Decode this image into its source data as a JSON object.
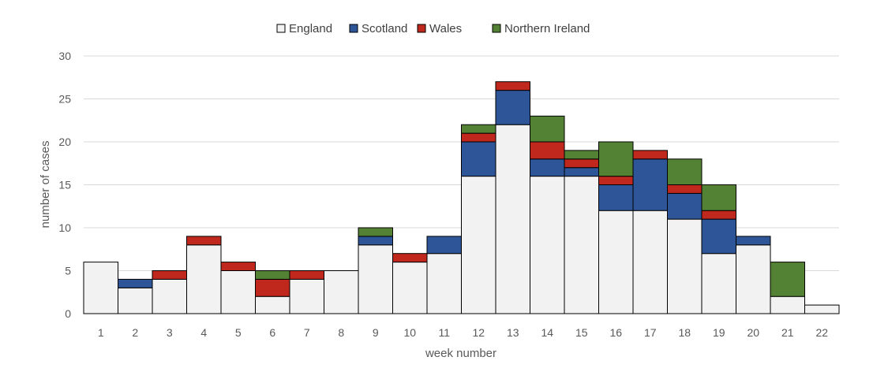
{
  "chart_data": {
    "type": "bar",
    "stacked": true,
    "title": "",
    "xlabel": "week number",
    "ylabel": "number of cases",
    "ylim": [
      0,
      30
    ],
    "yticks": [
      0,
      5,
      10,
      15,
      20,
      25,
      30
    ],
    "grid": true,
    "legend_position": "top",
    "categories": [
      "1",
      "2",
      "3",
      "4",
      "5",
      "6",
      "7",
      "8",
      "9",
      "10",
      "11",
      "12",
      "13",
      "14",
      "15",
      "16",
      "17",
      "18",
      "19",
      "20",
      "21",
      "22"
    ],
    "series": [
      {
        "name": "England",
        "color": "#f2f2f2",
        "values": [
          6,
          3,
          4,
          8,
          5,
          2,
          4,
          5,
          8,
          6,
          7,
          16,
          22,
          16,
          16,
          12,
          12,
          11,
          7,
          8,
          2,
          1
        ]
      },
      {
        "name": "Scotland",
        "color": "#2e5597",
        "values": [
          0,
          1,
          0,
          0,
          0,
          0,
          0,
          0,
          1,
          0,
          2,
          4,
          4,
          2,
          1,
          3,
          6,
          3,
          4,
          1,
          0,
          0
        ]
      },
      {
        "name": "Wales",
        "color": "#c0281e",
        "values": [
          0,
          0,
          1,
          1,
          1,
          2,
          1,
          0,
          0,
          1,
          0,
          1,
          1,
          2,
          1,
          1,
          1,
          1,
          1,
          0,
          0,
          0
        ]
      },
      {
        "name": "Northern Ireland",
        "color": "#548235",
        "values": [
          0,
          0,
          0,
          0,
          0,
          1,
          0,
          0,
          1,
          0,
          0,
          1,
          0,
          3,
          1,
          4,
          0,
          3,
          3,
          0,
          4,
          0
        ]
      }
    ]
  }
}
